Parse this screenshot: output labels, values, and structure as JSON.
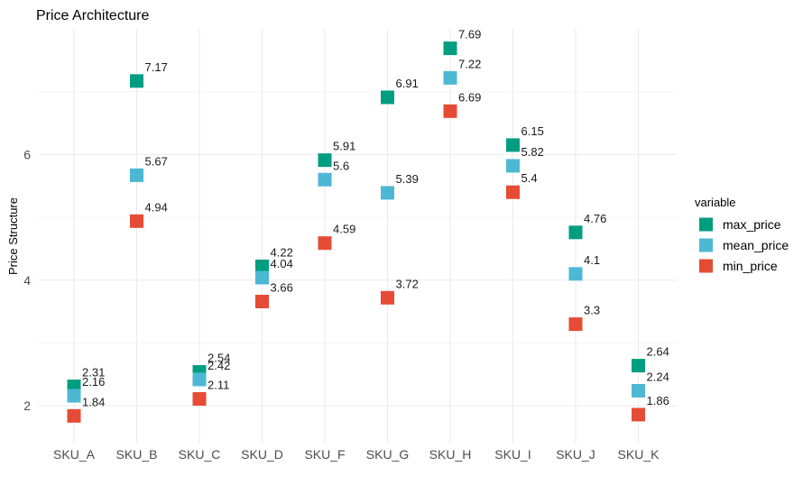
{
  "chart_data": {
    "type": "scatter",
    "title": "Price Architecture",
    "xlabel": "",
    "ylabel": "Price Structure",
    "categories": [
      "SKU_A",
      "SKU_B",
      "SKU_C",
      "SKU_D",
      "SKU_F",
      "SKU_G",
      "SKU_H",
      "SKU_I",
      "SKU_J",
      "SKU_K"
    ],
    "yticks": [
      2,
      4,
      6
    ],
    "ylim": [
      1.4,
      8.0
    ],
    "grid": true,
    "legend": {
      "title": "variable",
      "position": "right"
    },
    "series": [
      {
        "name": "max_price",
        "color": "#009E80",
        "values": [
          2.31,
          7.17,
          2.54,
          4.22,
          5.91,
          6.91,
          7.69,
          6.15,
          4.76,
          2.64
        ],
        "labels": [
          "2.31",
          "7.17",
          "2.54",
          "4.22",
          "5.91",
          "6.91",
          "7.69",
          "6.15",
          "4.76",
          "2.64"
        ]
      },
      {
        "name": "mean_price",
        "color": "#4DB8D4",
        "values": [
          2.16,
          5.67,
          2.42,
          4.04,
          5.6,
          5.39,
          7.22,
          5.82,
          4.1,
          2.24
        ],
        "labels": [
          "2.16",
          "5.67",
          "2.42",
          "4.04",
          "5.6",
          "5.39",
          "7.22",
          "5.82",
          "4.1",
          "2.24"
        ]
      },
      {
        "name": "min_price",
        "color": "#E64B35",
        "values": [
          1.84,
          4.94,
          2.11,
          3.66,
          4.59,
          3.72,
          6.69,
          5.4,
          3.3,
          1.86
        ],
        "labels": [
          "1.84",
          "4.94",
          "2.11",
          "3.66",
          "4.59",
          "3.72",
          "6.69",
          "5.4",
          "3.3",
          "1.86"
        ]
      }
    ]
  }
}
